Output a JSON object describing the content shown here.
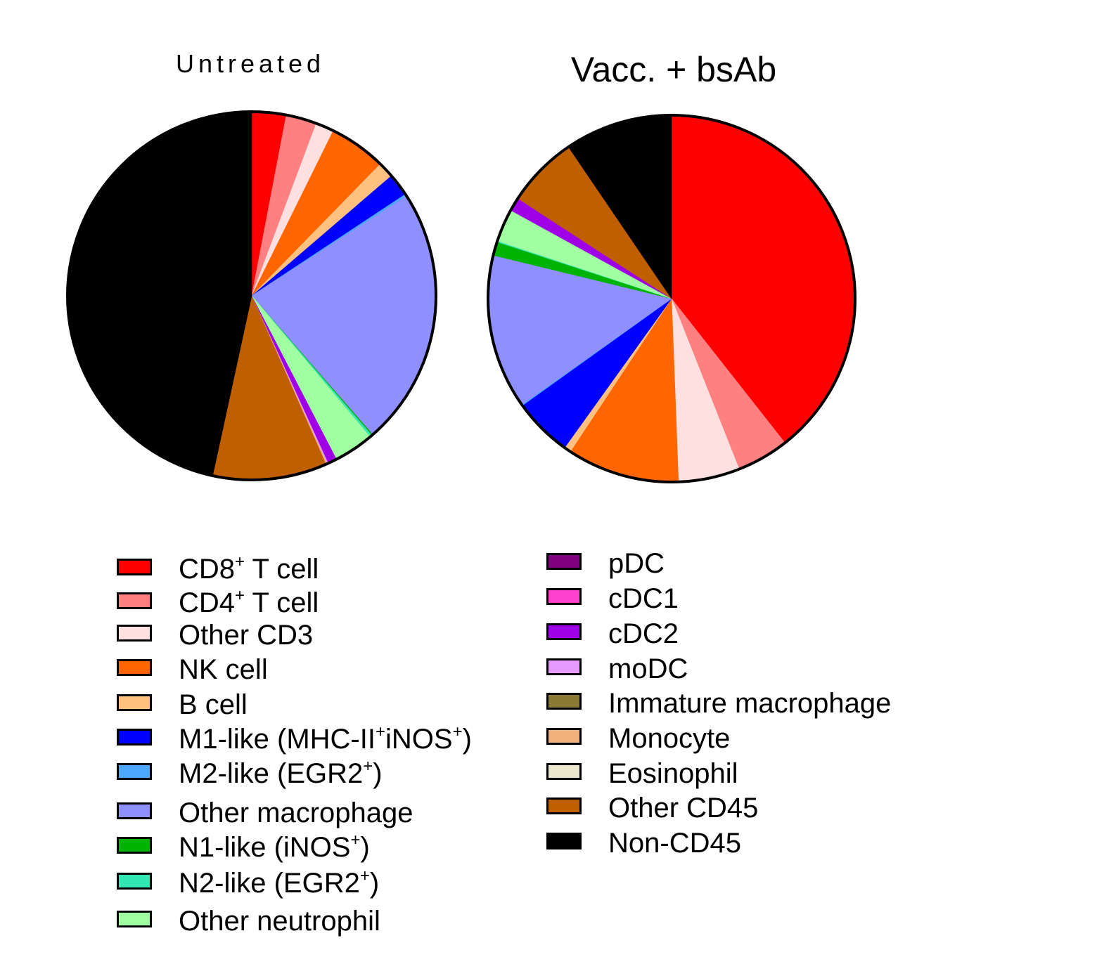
{
  "chart_data": [
    {
      "type": "pie",
      "title": "Untreated",
      "start": "top, clockwise",
      "slices": [
        {
          "label": "CD8⁺ T cell",
          "value": 3.0
        },
        {
          "label": "CD4⁺ T cell",
          "value": 2.7
        },
        {
          "label": "Other CD3",
          "value": 1.6
        },
        {
          "label": "NK cell",
          "value": 5.0
        },
        {
          "label": "B cell",
          "value": 1.4
        },
        {
          "label": "M1-like (MHC-II⁺iNOS⁺)",
          "value": 2.0
        },
        {
          "label": "M2-like (EGR2⁺)",
          "value": 0.2
        },
        {
          "label": "Other macrophage",
          "value": 22.7
        },
        {
          "label": "N1-like (iNOS⁺)",
          "value": 0.1
        },
        {
          "label": "N2-like (EGR2⁺)",
          "value": 0.2
        },
        {
          "label": "Other neutrophil",
          "value": 3.5
        },
        {
          "label": "cDC2",
          "value": 0.8
        },
        {
          "label": "moDC",
          "value": 0.1
        },
        {
          "label": "Monocyte",
          "value": 0.1
        },
        {
          "label": "Other CD45",
          "value": 10.0
        },
        {
          "label": "Non-CD45",
          "value": 46.6
        }
      ]
    },
    {
      "type": "pie",
      "title": "Vacc. + bsAb",
      "start": "top, clockwise",
      "slices": [
        {
          "label": "CD8⁺ T cell",
          "value": 39.4
        },
        {
          "label": "CD4⁺ T cell",
          "value": 4.6
        },
        {
          "label": "Other CD3",
          "value": 5.4
        },
        {
          "label": "NK cell",
          "value": 9.9
        },
        {
          "label": "B cell",
          "value": 0.6
        },
        {
          "label": "M1-like (MHC-II⁺iNOS⁺)",
          "value": 5.2
        },
        {
          "label": "M2-like (EGR2⁺)",
          "value": 0.1
        },
        {
          "label": "Other macrophage",
          "value": 13.6
        },
        {
          "label": "N1-like (iNOS⁺)",
          "value": 1.2
        },
        {
          "label": "N2-like (EGR2⁺)",
          "value": 0.1
        },
        {
          "label": "Other neutrophil",
          "value": 2.9
        },
        {
          "label": "cDC2",
          "value": 1.2
        },
        {
          "label": "Other CD45",
          "value": 6.3
        },
        {
          "label": "Non-CD45",
          "value": 9.5
        }
      ]
    }
  ],
  "legend": {
    "left": [
      {
        "base": "CD8",
        "sup": "+",
        "rest": " T cell",
        "tail": "",
        "sup2": "",
        "end": "",
        "color": "#ff0000"
      },
      {
        "base": "CD4",
        "sup": "+",
        "rest": " T cell",
        "tail": "",
        "sup2": "",
        "end": "",
        "color": "#ff8080"
      },
      {
        "base": "Other CD3",
        "sup": "",
        "rest": "",
        "tail": "",
        "sup2": "",
        "end": "",
        "color": "#ffe0e0"
      },
      {
        "base": "NK cell",
        "sup": "",
        "rest": "",
        "tail": "",
        "sup2": "",
        "end": "",
        "color": "#ff6600"
      },
      {
        "base": "B cell",
        "sup": "",
        "rest": "",
        "tail": "",
        "sup2": "",
        "end": "",
        "color": "#ffc080"
      },
      {
        "base": "M1-like (MHC-II",
        "sup": "+",
        "rest": "",
        "tail": "iNOS",
        "sup2": "+",
        "end": ")",
        "color": "#0000ff"
      },
      {
        "base": "M2-like (EGR2",
        "sup": "+",
        "rest": ")",
        "tail": "",
        "sup2": "",
        "end": "",
        "color": "#4da6ff"
      },
      {
        "base": "Other macrophage",
        "sup": "",
        "rest": "",
        "tail": "",
        "sup2": "",
        "end": "",
        "color": "#8f8fff"
      },
      {
        "base": "N1-like (iNOS",
        "sup": "+",
        "rest": ")",
        "tail": "",
        "sup2": "",
        "end": "",
        "color": "#00b300"
      },
      {
        "base": "N2-like (EGR2",
        "sup": "+",
        "rest": ")",
        "tail": "",
        "sup2": "",
        "end": "",
        "color": "#33e6b3"
      },
      {
        "base": "Other neutrophil",
        "sup": "",
        "rest": "",
        "tail": "",
        "sup2": "",
        "end": "",
        "color": "#a0ffa0"
      }
    ],
    "right": [
      {
        "base": "pDC",
        "sup": "",
        "rest": "",
        "tail": "",
        "sup2": "",
        "end": "",
        "color": "#800080"
      },
      {
        "base": "cDC1",
        "sup": "",
        "rest": "",
        "tail": "",
        "sup2": "",
        "end": "",
        "color": "#ff40cc"
      },
      {
        "base": "cDC2",
        "sup": "",
        "rest": "",
        "tail": "",
        "sup2": "",
        "end": "",
        "color": "#a000e6"
      },
      {
        "base": "moDC",
        "sup": "",
        "rest": "",
        "tail": "",
        "sup2": "",
        "end": "",
        "color": "#e699ff"
      },
      {
        "base": "Immature macrophage",
        "sup": "",
        "rest": "",
        "tail": "",
        "sup2": "",
        "end": "",
        "color": "#8a7a33"
      },
      {
        "base": "Monocyte",
        "sup": "",
        "rest": "",
        "tail": "",
        "sup2": "",
        "end": "",
        "color": "#f0b07a"
      },
      {
        "base": "Eosinophil",
        "sup": "",
        "rest": "",
        "tail": "",
        "sup2": "",
        "end": "",
        "color": "#ebe6cc"
      },
      {
        "base": "Other CD45",
        "sup": "",
        "rest": "",
        "tail": "",
        "sup2": "",
        "end": "",
        "color": "#bf5f00"
      },
      {
        "base": "Non-CD45",
        "sup": "",
        "rest": "",
        "tail": "",
        "sup2": "",
        "end": "",
        "color": "#000000"
      }
    ]
  }
}
